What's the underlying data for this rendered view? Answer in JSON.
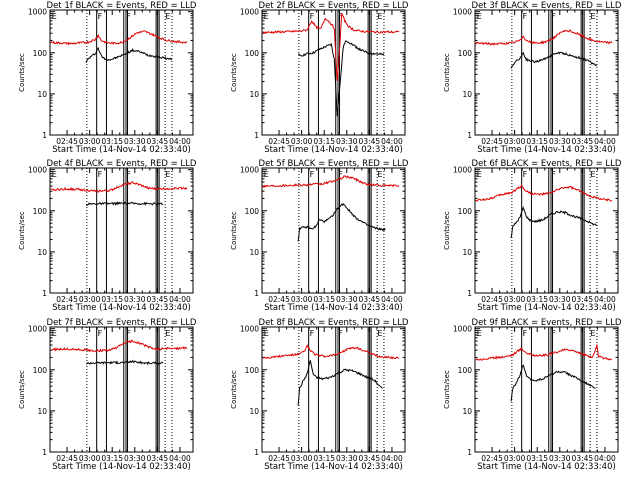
{
  "colors": {
    "events": "#000000",
    "lld": "#dd0000",
    "background": "#ffffff",
    "axes": "#000000"
  },
  "shared": {
    "xlabel": "Start Time (14-Nov-14 02:33:40)",
    "ylabel": "Counts/sec",
    "x_ticks": [
      "02:45",
      "03:00",
      "03:15",
      "03:30",
      "03:45",
      "04:00"
    ],
    "x_range_minutes_after_start": [
      0,
      95
    ],
    "y_ticks": [
      "1",
      "10",
      "100",
      "1000"
    ],
    "y_range": [
      1,
      1100
    ],
    "y_scale": "log"
  },
  "chart_data": [
    {
      "type": "line",
      "title": "Det 1f BLACK = Events, RED = LLD",
      "xlabel": "Start Time (14-Nov-14 02:33:40)",
      "ylabel": "Counts/sec",
      "y_scale": "log",
      "ylim": [
        1,
        1100
      ],
      "markers": [
        {
          "label": "E",
          "at": 0.5
        },
        {
          "label": "F",
          "at": 31
        },
        {
          "label": "F",
          "at": 50
        },
        {
          "label": "E",
          "at": 76
        }
      ],
      "dotted_lines": [
        24.5,
        76.5,
        81
      ],
      "solid_lines": [
        31,
        37.5,
        49,
        50.5,
        51.5,
        70.5,
        71.5,
        72.5
      ],
      "series": [
        {
          "name": "Events",
          "color": "#000000",
          "x": [
            24,
            25,
            27,
            30,
            32,
            34,
            36,
            40,
            45,
            50,
            55,
            60,
            65,
            70,
            75,
            78,
            81
          ],
          "y": [
            60,
            68,
            80,
            95,
            130,
            85,
            72,
            68,
            78,
            95,
            115,
            105,
            88,
            82,
            76,
            72,
            70
          ]
        },
        {
          "name": "LLD",
          "color": "#dd0000",
          "x": [
            0.5,
            5,
            10,
            15,
            20,
            25,
            30,
            32,
            34,
            38,
            43,
            48,
            53,
            58,
            63,
            68,
            73,
            78,
            85,
            91
          ],
          "y": [
            180,
            175,
            170,
            168,
            175,
            180,
            210,
            270,
            200,
            175,
            170,
            180,
            230,
            310,
            330,
            280,
            230,
            200,
            185,
            180
          ]
        }
      ]
    },
    {
      "type": "line",
      "title": "Det 2f BLACK = Events, RED = LLD",
      "xlabel": "Start Time (14-Nov-14 02:33:40)",
      "ylabel": "Counts/sec",
      "y_scale": "log",
      "ylim": [
        1,
        1100
      ],
      "markers": [
        {
          "label": "E",
          "at": 0.5
        },
        {
          "label": "F",
          "at": 31
        },
        {
          "label": "F",
          "at": 50
        },
        {
          "label": "E",
          "at": 76
        }
      ],
      "dotted_lines": [
        24.5,
        76.5,
        81
      ],
      "solid_lines": [
        31,
        37.5,
        49,
        50.5,
        51.5,
        70.5,
        71.5,
        72.5
      ],
      "series": [
        {
          "name": "Events",
          "color": "#000000",
          "x": [
            24,
            26,
            30,
            34,
            38,
            42,
            46,
            48,
            50,
            51,
            52,
            54,
            56,
            60,
            65,
            70,
            75,
            81
          ],
          "y": [
            90,
            85,
            95,
            100,
            120,
            140,
            160,
            70,
            3,
            8,
            20,
            140,
            200,
            160,
            120,
            100,
            95,
            90
          ]
        },
        {
          "name": "LLD",
          "color": "#dd0000",
          "x": [
            0.5,
            10,
            20,
            26,
            30,
            33,
            36,
            39,
            42,
            45,
            48,
            50,
            51,
            53,
            55,
            58,
            62,
            68,
            75,
            85,
            91
          ],
          "y": [
            310,
            320,
            330,
            340,
            360,
            600,
            420,
            380,
            700,
            560,
            400,
            20,
            60,
            900,
            600,
            420,
            350,
            330,
            320,
            320,
            320
          ]
        }
      ]
    },
    {
      "type": "line",
      "title": "Det 3f BLACK = Events, RED = LLD",
      "xlabel": "Start Time (14-Nov-14 02:33:40)",
      "ylabel": "Counts/sec",
      "y_scale": "log",
      "ylim": [
        1,
        1100
      ],
      "markers": [
        {
          "label": "E",
          "at": 0.5
        },
        {
          "label": "F",
          "at": 31
        },
        {
          "label": "F",
          "at": 50
        },
        {
          "label": "E",
          "at": 76
        }
      ],
      "dotted_lines": [
        24.5,
        76.5,
        81
      ],
      "solid_lines": [
        31,
        37.5,
        49,
        50.5,
        51.5,
        70.5,
        71.5,
        72.5
      ],
      "series": [
        {
          "name": "Events",
          "color": "#000000",
          "x": [
            24,
            25,
            27,
            30,
            32,
            34,
            36,
            40,
            45,
            50,
            55,
            60,
            65,
            70,
            75,
            78,
            81
          ],
          "y": [
            40,
            50,
            62,
            75,
            100,
            70,
            65,
            60,
            68,
            85,
            100,
            95,
            82,
            75,
            65,
            55,
            50
          ]
        },
        {
          "name": "LLD",
          "color": "#dd0000",
          "x": [
            0.5,
            5,
            10,
            15,
            20,
            25,
            30,
            32,
            34,
            38,
            43,
            48,
            53,
            58,
            63,
            68,
            73,
            78,
            85,
            91
          ],
          "y": [
            170,
            170,
            165,
            165,
            170,
            175,
            200,
            260,
            200,
            175,
            175,
            190,
            240,
            330,
            340,
            290,
            240,
            200,
            180,
            175
          ]
        }
      ]
    },
    {
      "type": "line",
      "title": "Det 4f BLACK = Events, RED = LLD",
      "xlabel": "Start Time (14-Nov-14 02:33:40)",
      "ylabel": "Counts/sec",
      "y_scale": "log",
      "ylim": [
        1,
        1100
      ],
      "markers": [
        {
          "label": "E",
          "at": 0.5
        },
        {
          "label": "F",
          "at": 31
        },
        {
          "label": "F",
          "at": 50
        },
        {
          "label": "E",
          "at": 76
        }
      ],
      "dotted_lines": [
        24.5,
        76.5,
        81
      ],
      "solid_lines": [
        31,
        37.5,
        49,
        50.5,
        51.5,
        70.5,
        71.5,
        72.5
      ],
      "series": [
        {
          "name": "Events",
          "color": "#000000",
          "x": [
            24,
            25,
            30,
            40,
            50,
            60,
            70,
            75
          ],
          "y": [
            140,
            145,
            148,
            150,
            152,
            150,
            148,
            145
          ]
        },
        {
          "name": "LLD",
          "color": "#dd0000",
          "x": [
            0.5,
            10,
            20,
            30,
            40,
            45,
            50,
            55,
            60,
            65,
            70,
            80,
            91
          ],
          "y": [
            320,
            340,
            330,
            300,
            310,
            380,
            450,
            480,
            420,
            360,
            340,
            350,
            360
          ]
        }
      ]
    },
    {
      "type": "line",
      "title": "Det 5f BLACK = Events, RED = LLD",
      "xlabel": "Start Time (14-Nov-14 02:33:40)",
      "ylabel": "Counts/sec",
      "y_scale": "log",
      "ylim": [
        1,
        1100
      ],
      "markers": [
        {
          "label": "E",
          "at": 0.5
        },
        {
          "label": "F",
          "at": 31
        },
        {
          "label": "F",
          "at": 50
        },
        {
          "label": "E",
          "at": 76
        }
      ],
      "dotted_lines": [
        24.5,
        76.5,
        81
      ],
      "solid_lines": [
        31,
        37.5,
        49,
        50.5,
        51.5,
        70.5,
        71.5,
        72.5
      ],
      "series": [
        {
          "name": "Events",
          "color": "#000000",
          "x": [
            24,
            25,
            30,
            33,
            36,
            38,
            42,
            46,
            50,
            54,
            58,
            62,
            66,
            70,
            75,
            80,
            82
          ],
          "y": [
            18,
            38,
            40,
            36,
            42,
            60,
            55,
            70,
            110,
            150,
            100,
            70,
            55,
            45,
            38,
            35,
            35
          ]
        },
        {
          "name": "LLD",
          "color": "#dd0000",
          "x": [
            0.5,
            10,
            20,
            30,
            40,
            50,
            55,
            60,
            65,
            70,
            80,
            91
          ],
          "y": [
            400,
            410,
            420,
            430,
            450,
            560,
            680,
            640,
            520,
            440,
            410,
            410
          ]
        }
      ]
    },
    {
      "type": "line",
      "title": "Det 6f BLACK = Events, RED = LLD",
      "xlabel": "Start Time (14-Nov-14 02:33:40)",
      "ylabel": "Counts/sec",
      "y_scale": "log",
      "ylim": [
        1,
        1100
      ],
      "markers": [
        {
          "label": "E",
          "at": 0.5
        },
        {
          "label": "F",
          "at": 31
        },
        {
          "label": "F",
          "at": 50
        },
        {
          "label": "E",
          "at": 76
        }
      ],
      "dotted_lines": [
        24.5,
        76.5,
        81
      ],
      "solid_lines": [
        31,
        37.5,
        49,
        50.5,
        51.5,
        70.5,
        71.5,
        72.5
      ],
      "series": [
        {
          "name": "Events",
          "color": "#000000",
          "x": [
            24,
            25,
            27,
            30,
            32,
            34,
            36,
            40,
            45,
            50,
            55,
            60,
            65,
            70,
            75,
            78,
            81
          ],
          "y": [
            22,
            40,
            50,
            70,
            120,
            75,
            60,
            55,
            60,
            80,
            95,
            90,
            75,
            65,
            55,
            48,
            45
          ]
        },
        {
          "name": "LLD",
          "color": "#dd0000",
          "x": [
            0.5,
            5,
            10,
            15,
            20,
            25,
            28,
            31,
            34,
            38,
            43,
            48,
            53,
            58,
            63,
            68,
            73,
            78,
            85,
            91
          ],
          "y": [
            180,
            185,
            200,
            230,
            260,
            280,
            350,
            400,
            300,
            260,
            250,
            260,
            300,
            360,
            380,
            320,
            260,
            220,
            190,
            180
          ]
        }
      ]
    },
    {
      "type": "line",
      "title": "Det 7f BLACK = Events, RED = LLD",
      "xlabel": "Start Time (14-Nov-14 02:33:40)",
      "ylabel": "Counts/sec",
      "y_scale": "log",
      "ylim": [
        1,
        1100
      ],
      "markers": [
        {
          "label": "E",
          "at": 0.5
        },
        {
          "label": "F",
          "at": 31
        },
        {
          "label": "F",
          "at": 50
        },
        {
          "label": "E",
          "at": 76
        }
      ],
      "dotted_lines": [
        24.5,
        76.5,
        81
      ],
      "solid_lines": [
        31,
        37.5,
        49,
        50.5,
        51.5,
        70.5,
        71.5,
        72.5
      ],
      "series": [
        {
          "name": "Events",
          "color": "#000000",
          "x": [
            24,
            25,
            30,
            40,
            50,
            55,
            60,
            65,
            70,
            75
          ],
          "y": [
            140,
            145,
            148,
            150,
            150,
            160,
            150,
            145,
            145,
            145
          ]
        },
        {
          "name": "LLD",
          "color": "#dd0000",
          "x": [
            0.5,
            10,
            20,
            30,
            40,
            45,
            50,
            55,
            60,
            65,
            70,
            80,
            91
          ],
          "y": [
            310,
            320,
            310,
            290,
            300,
            360,
            460,
            500,
            440,
            360,
            320,
            330,
            340
          ]
        }
      ]
    },
    {
      "type": "line",
      "title": "Det 8f BLACK = Events, RED = LLD",
      "xlabel": "Start Time (14-Nov-14 02:33:40)",
      "ylabel": "Counts/sec",
      "y_scale": "log",
      "ylim": [
        1,
        1100
      ],
      "markers": [
        {
          "label": "E",
          "at": 0.5
        },
        {
          "label": "F",
          "at": 31
        },
        {
          "label": "F",
          "at": 50
        },
        {
          "label": "E",
          "at": 76
        }
      ],
      "dotted_lines": [
        24.5,
        76.5,
        81
      ],
      "solid_lines": [
        31,
        37.5,
        49,
        50.5,
        51.5,
        70.5,
        71.5,
        72.5
      ],
      "series": [
        {
          "name": "Events",
          "color": "#000000",
          "x": [
            24,
            25,
            27,
            30,
            32,
            34,
            36,
            40,
            45,
            50,
            55,
            60,
            65,
            70,
            75,
            78,
            80
          ],
          "y": [
            14,
            35,
            50,
            80,
            170,
            80,
            65,
            60,
            65,
            80,
            100,
            95,
            80,
            65,
            55,
            40,
            35
          ]
        },
        {
          "name": "LLD",
          "color": "#dd0000",
          "x": [
            0.5,
            5,
            10,
            15,
            20,
            25,
            28,
            30,
            32,
            35,
            38,
            43,
            48,
            53,
            58,
            63,
            68,
            73,
            78,
            85,
            91
          ],
          "y": [
            200,
            200,
            210,
            220,
            230,
            240,
            280,
            380,
            300,
            240,
            220,
            210,
            230,
            270,
            330,
            340,
            290,
            240,
            210,
            200,
            195
          ]
        }
      ]
    },
    {
      "type": "line",
      "title": "Det 9f BLACK = Events, RED = LLD",
      "xlabel": "Start Time (14-Nov-14 02:33:40)",
      "ylabel": "Counts/sec",
      "y_scale": "log",
      "ylim": [
        1,
        1100
      ],
      "markers": [
        {
          "label": "E",
          "at": 0.5
        },
        {
          "label": "F",
          "at": 31
        },
        {
          "label": "F",
          "at": 50
        },
        {
          "label": "E",
          "at": 76
        }
      ],
      "dotted_lines": [
        24.5,
        76.5,
        81
      ],
      "solid_lines": [
        31,
        37.5,
        49,
        50.5,
        51.5,
        70.5,
        71.5,
        72.5
      ],
      "series": [
        {
          "name": "Events",
          "color": "#000000",
          "x": [
            24,
            25,
            27,
            30,
            32,
            34,
            36,
            40,
            45,
            50,
            55,
            60,
            65,
            70,
            75,
            78,
            80
          ],
          "y": [
            18,
            35,
            45,
            75,
            130,
            75,
            60,
            55,
            60,
            75,
            90,
            85,
            70,
            55,
            45,
            38,
            35
          ]
        },
        {
          "name": "LLD",
          "color": "#dd0000",
          "x": [
            0.5,
            5,
            10,
            15,
            20,
            25,
            28,
            31,
            34,
            38,
            43,
            48,
            53,
            58,
            63,
            68,
            73,
            78,
            81,
            82,
            85,
            91
          ],
          "y": [
            180,
            180,
            190,
            200,
            210,
            230,
            280,
            330,
            260,
            230,
            220,
            230,
            260,
            300,
            310,
            270,
            230,
            200,
            380,
            220,
            190,
            180
          ]
        }
      ]
    }
  ]
}
